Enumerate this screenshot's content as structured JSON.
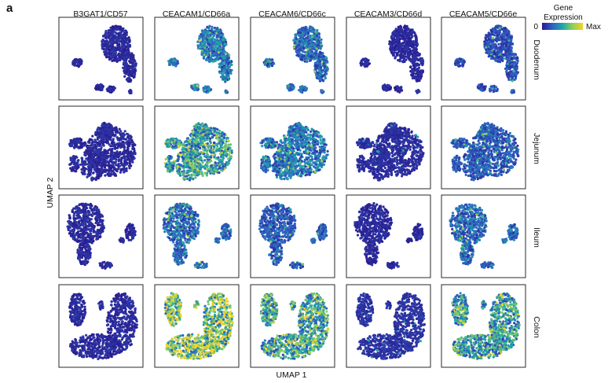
{
  "panel_letter": "a",
  "colorbar": {
    "title_line1": "Gene",
    "title_line2": "Expression",
    "min_label": "0",
    "max_label": "Max",
    "colors": [
      "#2a1a8f",
      "#2f5fc4",
      "#1fa7a8",
      "#8fcf5a",
      "#f5d229"
    ]
  },
  "axes": {
    "xlabel": "UMAP 1",
    "ylabel": "UMAP 2"
  },
  "chart_data": {
    "type": "scatter",
    "description_kind": "UMAP feature plots",
    "genes": [
      "B3GAT1/CD57",
      "CEACAM1/CD66a",
      "CEACAM6/CD66c",
      "CEACAM3/CD66d",
      "CEACAM5/CD66e"
    ],
    "regions": [
      "Duodenum",
      "Jejunum",
      "Ileum",
      "Colon"
    ],
    "relative_expression": [
      [
        0.05,
        0.35,
        0.3,
        0.06,
        0.2
      ],
      [
        0.05,
        0.5,
        0.35,
        0.08,
        0.25
      ],
      [
        0.03,
        0.3,
        0.25,
        0.05,
        0.3
      ],
      [
        0.02,
        0.75,
        0.55,
        0.1,
        0.5
      ]
    ]
  }
}
